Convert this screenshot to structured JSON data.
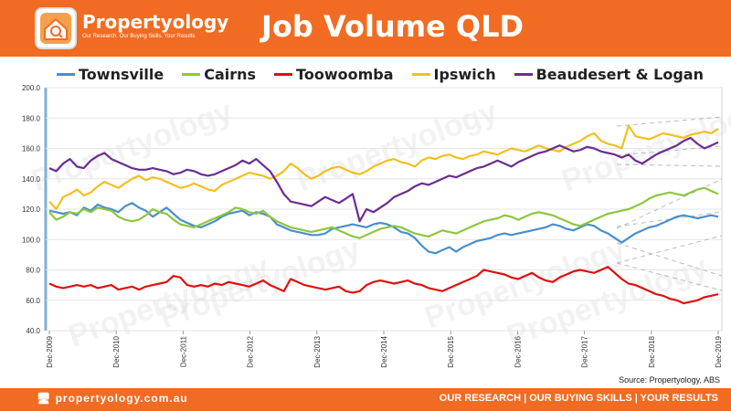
{
  "header": {
    "logo_name": "Propertyology",
    "logo_tagline": "Our Research. Our Buying Skills. Your Results",
    "title": "Job Volume QLD"
  },
  "footer": {
    "website": "propertyology.com.au",
    "slogan": "OUR RESEARCH | OUR BUYING SKILLS | YOUR RESULTS"
  },
  "source": "Source: Propertyology, ABS",
  "watermark": "Propertyology",
  "colors": {
    "brand": "#f26b22",
    "Townsville": "#4a8fcb",
    "Cairns": "#8ec63f",
    "Toowoomba": "#e01010",
    "Ipswich": "#f2c01e",
    "Beaudesert & Logan": "#6a2d91"
  },
  "chart_data": {
    "type": "line",
    "title": "Job Volume QLD",
    "xlabel": "",
    "ylabel": "",
    "ylim": [
      40,
      200
    ],
    "yticks": [
      "40.0",
      "60.0",
      "80.0",
      "100.0",
      "120.0",
      "140.0",
      "160.0",
      "180.0",
      "200.0"
    ],
    "xticks": [
      "Dec-2009",
      "Dec-2010",
      "Dec-2011",
      "Dec-2012",
      "Dec-2013",
      "Dec-2014",
      "Dec-2015",
      "Dec-2016",
      "Dec-2017",
      "Dec-2018",
      "Dec-2019"
    ],
    "legend_position": "top",
    "x_start": "Dec-2009",
    "x_end": "Dec-2019",
    "series": [
      {
        "name": "Townsville",
        "values": [
          119,
          118,
          117,
          118,
          116,
          121,
          119,
          123,
          121,
          120,
          118,
          122,
          124,
          121,
          119,
          115,
          118,
          121,
          117,
          113,
          111,
          109,
          108,
          110,
          112,
          115,
          117,
          118,
          119,
          116,
          118,
          117,
          115,
          110,
          108,
          106,
          105,
          104,
          103,
          103,
          104,
          107,
          108,
          109,
          110,
          109,
          108,
          110,
          111,
          110,
          108,
          105,
          104,
          101,
          96,
          92,
          91,
          93,
          95,
          92,
          95,
          97,
          99,
          100,
          101,
          103,
          104,
          103,
          104,
          105,
          106,
          107,
          108,
          110,
          109,
          107,
          106,
          108,
          110,
          109,
          106,
          104,
          101,
          98,
          101,
          104,
          106,
          108,
          109,
          111,
          113,
          115,
          116,
          115,
          114,
          115,
          116,
          115
        ]
      },
      {
        "name": "Cairns",
        "values": [
          118,
          113,
          115,
          118,
          117,
          120,
          118,
          121,
          120,
          119,
          115,
          113,
          112,
          113,
          116,
          120,
          118,
          117,
          113,
          110,
          109,
          108,
          110,
          112,
          114,
          116,
          118,
          121,
          120,
          118,
          117,
          119,
          115,
          112,
          110,
          108,
          107,
          106,
          105,
          106,
          107,
          108,
          106,
          104,
          102,
          101,
          103,
          105,
          107,
          108,
          109,
          108,
          106,
          104,
          103,
          102,
          104,
          106,
          105,
          104,
          106,
          108,
          110,
          112,
          113,
          114,
          116,
          115,
          113,
          115,
          117,
          118,
          117,
          116,
          114,
          112,
          110,
          109,
          111,
          113,
          115,
          117,
          118,
          119,
          120,
          122,
          124,
          127,
          129,
          130,
          131,
          130,
          129,
          131,
          133,
          134,
          132,
          130
        ]
      },
      {
        "name": "Toowoomba",
        "values": [
          71,
          69,
          68,
          69,
          70,
          69,
          70,
          68,
          69,
          70,
          67,
          68,
          69,
          67,
          69,
          70,
          71,
          72,
          76,
          75,
          70,
          69,
          70,
          69,
          71,
          70,
          72,
          71,
          70,
          69,
          71,
          73,
          70,
          68,
          66,
          74,
          72,
          70,
          69,
          68,
          67,
          68,
          69,
          66,
          65,
          66,
          70,
          72,
          73,
          72,
          71,
          72,
          73,
          71,
          70,
          68,
          67,
          66,
          68,
          70,
          72,
          74,
          76,
          80,
          79,
          78,
          77,
          75,
          74,
          76,
          78,
          75,
          73,
          72,
          75,
          77,
          79,
          80,
          79,
          78,
          80,
          82,
          78,
          74,
          71,
          70,
          68,
          66,
          64,
          63,
          61,
          60,
          58,
          59,
          60,
          62,
          63,
          64
        ]
      },
      {
        "name": "Ipswich",
        "values": [
          125,
          120,
          128,
          130,
          133,
          129,
          131,
          135,
          138,
          136,
          134,
          137,
          140,
          142,
          139,
          141,
          140,
          138,
          136,
          134,
          135,
          137,
          135,
          133,
          132,
          136,
          138,
          140,
          142,
          144,
          143,
          142,
          140,
          142,
          145,
          150,
          147,
          143,
          140,
          142,
          145,
          147,
          148,
          146,
          144,
          143,
          145,
          148,
          150,
          152,
          153,
          151,
          150,
          148,
          152,
          154,
          153,
          155,
          156,
          154,
          153,
          155,
          156,
          158,
          157,
          156,
          158,
          160,
          159,
          158,
          160,
          162,
          160,
          159,
          158,
          161,
          163,
          165,
          168,
          170,
          165,
          163,
          162,
          160,
          175,
          168,
          167,
          166,
          168,
          170,
          169,
          168,
          167,
          169,
          170,
          171,
          170,
          173
        ]
      },
      {
        "name": "Beaudesert & Logan",
        "values": [
          147,
          145,
          150,
          153,
          148,
          147,
          152,
          155,
          157,
          153,
          151,
          149,
          147,
          146,
          146,
          147,
          146,
          145,
          143,
          144,
          146,
          145,
          143,
          142,
          143,
          145,
          147,
          149,
          152,
          150,
          153,
          149,
          145,
          138,
          130,
          125,
          124,
          123,
          122,
          125,
          128,
          126,
          124,
          127,
          130,
          112,
          120,
          118,
          121,
          124,
          128,
          130,
          132,
          135,
          137,
          136,
          138,
          140,
          142,
          141,
          143,
          145,
          147,
          148,
          150,
          152,
          150,
          148,
          151,
          153,
          155,
          157,
          158,
          160,
          162,
          160,
          158,
          159,
          161,
          160,
          158,
          157,
          156,
          154,
          156,
          152,
          150,
          153,
          156,
          158,
          160,
          162,
          165,
          167,
          163,
          160,
          162,
          164
        ]
      }
    ]
  }
}
